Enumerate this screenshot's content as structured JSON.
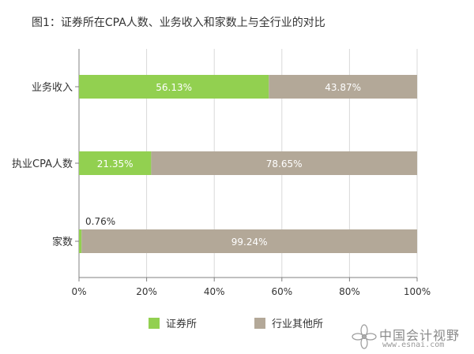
{
  "chart_data": {
    "type": "bar",
    "orientation": "horizontal",
    "stacked": "percent",
    "title": "图1：证券所在CPA人数、业务收入和家数上与全行业的对比",
    "categories": [
      "业务收入",
      "执业CPA人数",
      "家数"
    ],
    "series": [
      {
        "name": "证券所",
        "values": [
          56.13,
          21.35,
          0.76
        ],
        "labels": [
          "56.13%",
          "21.35%",
          "0.76%"
        ],
        "color": "#92d050"
      },
      {
        "name": "行业其他所",
        "values": [
          43.87,
          78.65,
          99.24
        ],
        "labels": [
          "43.87%",
          "78.65%",
          "99.24%"
        ],
        "color": "#b3a898"
      }
    ],
    "xlim": [
      0,
      100
    ],
    "xticks": [
      0,
      20,
      40,
      60,
      80,
      100
    ],
    "xtick_labels": [
      "0%",
      "20%",
      "40%",
      "60%",
      "80%",
      "100%"
    ],
    "grid": true,
    "legend_position": "bottom"
  },
  "watermark": {
    "name": "中国会计视野",
    "url": "www.esnai.com"
  }
}
